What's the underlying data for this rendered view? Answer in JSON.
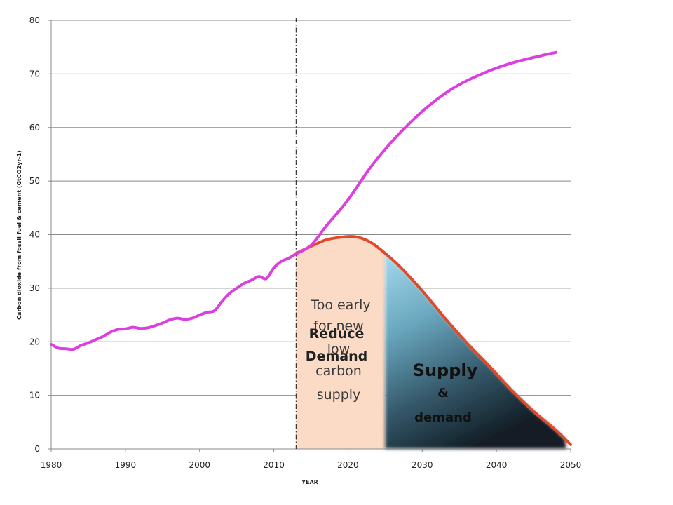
{
  "chart_data": {
    "type": "line",
    "xlabel": "YEAR",
    "ylabel": "Carbon dioxide from fossil fuel & cement (GtCO2yr-1)",
    "xlim": [
      1980,
      2050
    ],
    "ylim": [
      0,
      80
    ],
    "x_ticks": [
      "1980",
      "1990",
      "2000",
      "2010",
      "2020",
      "2030",
      "2040",
      "2050"
    ],
    "y_ticks": [
      "0",
      "10",
      "20",
      "30",
      "40",
      "50",
      "60",
      "70",
      "80"
    ],
    "grid": "horizontal",
    "legend": "none",
    "reference_line_x": 2013,
    "series": [
      {
        "color": "#dd3ee0",
        "x": [
          1980,
          1981,
          1982,
          1983,
          1984,
          1985,
          1986,
          1987,
          1988,
          1989,
          1990,
          1991,
          1992,
          1993,
          1994,
          1995,
          1996,
          1997,
          1998,
          1999,
          2000,
          2001,
          2002,
          2003,
          2004,
          2005,
          2006,
          2007,
          2008,
          2009,
          2010,
          2011,
          2012,
          2013,
          2015,
          2017,
          2020,
          2023,
          2026,
          2030,
          2034,
          2038,
          2042,
          2046,
          2048
        ],
        "y": [
          19.5,
          18.8,
          18.7,
          18.6,
          19.3,
          19.8,
          20.4,
          21.0,
          21.8,
          22.3,
          22.4,
          22.7,
          22.5,
          22.6,
          23.0,
          23.5,
          24.1,
          24.4,
          24.2,
          24.4,
          25.0,
          25.5,
          25.8,
          27.5,
          29.0,
          30.0,
          30.9,
          31.5,
          32.2,
          31.8,
          33.8,
          35.0,
          35.6,
          36.4,
          38.0,
          41.5,
          46.5,
          52.5,
          57.5,
          63.0,
          67.2,
          70.0,
          72.0,
          73.4,
          74.0
        ]
      },
      {
        "color": "#e04a28",
        "x": [
          2013,
          2015,
          2017,
          2019,
          2021,
          2023,
          2025,
          2027,
          2030,
          2033,
          2036,
          2039,
          2042,
          2045,
          2048,
          2050
        ],
        "y": [
          36.5,
          37.8,
          39.0,
          39.5,
          39.6,
          38.6,
          36.5,
          34.0,
          29.5,
          24.5,
          19.8,
          15.5,
          11.0,
          7.0,
          3.5,
          0.8
        ]
      }
    ],
    "regions": [
      {
        "x_from": 2013,
        "x_to": 2025,
        "color": "#fbdac6"
      },
      {
        "x_from": 2025,
        "x_to": 2050,
        "color_top": "#9ed2e6",
        "color_bottom": "#16252e"
      }
    ],
    "annotations": [
      {
        "lines": [
          "Too early",
          "for new",
          "low",
          "carbon",
          "supply"
        ],
        "color": "#3a3a3a"
      },
      {
        "lines": [
          "Reduce",
          "Demand"
        ],
        "color": "#222222"
      },
      {
        "lines": [
          "Supply",
          "&",
          "demand"
        ],
        "color": "#111111"
      }
    ]
  }
}
